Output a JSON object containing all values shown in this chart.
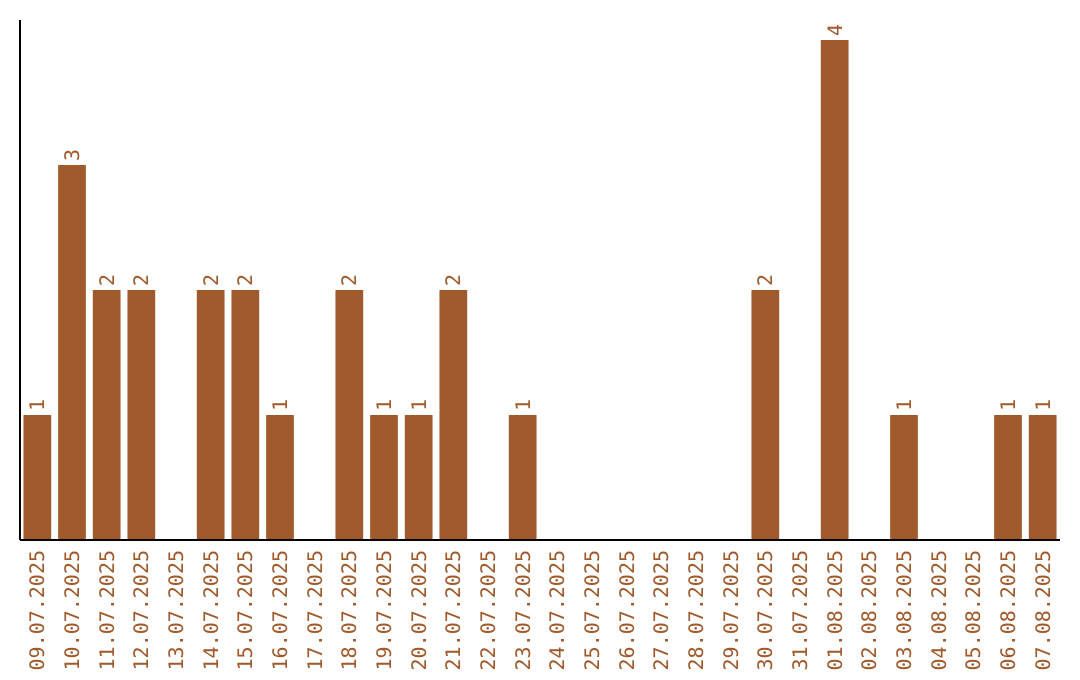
{
  "chart_data": {
    "type": "bar",
    "categories": [
      "09.07.2025",
      "10.07.2025",
      "11.07.2025",
      "12.07.2025",
      "13.07.2025",
      "14.07.2025",
      "15.07.2025",
      "16.07.2025",
      "17.07.2025",
      "18.07.2025",
      "19.07.2025",
      "20.07.2025",
      "21.07.2025",
      "22.07.2025",
      "23.07.2025",
      "24.07.2025",
      "25.07.2025",
      "26.07.2025",
      "27.07.2025",
      "28.07.2025",
      "29.07.2025",
      "30.07.2025",
      "31.07.2025",
      "01.08.2025",
      "02.08.2025",
      "03.08.2025",
      "04.08.2025",
      "05.08.2025",
      "06.08.2025",
      "07.08.2025"
    ],
    "values": [
      1,
      3,
      2,
      2,
      0,
      2,
      2,
      1,
      0,
      2,
      1,
      1,
      2,
      0,
      1,
      0,
      0,
      0,
      0,
      0,
      0,
      2,
      0,
      4,
      0,
      1,
      0,
      0,
      1,
      1
    ],
    "value_labels": [
      "1",
      "3",
      "2",
      "2",
      null,
      "2",
      "2",
      "1",
      null,
      "2",
      "1",
      "1",
      "2",
      null,
      "1",
      null,
      null,
      null,
      null,
      null,
      null,
      "2",
      null,
      "4",
      null,
      "1",
      null,
      null,
      "1",
      "1"
    ],
    "color": "#a0592a",
    "ylim": [
      0,
      4.16
    ],
    "tick_labels": "x"
  }
}
